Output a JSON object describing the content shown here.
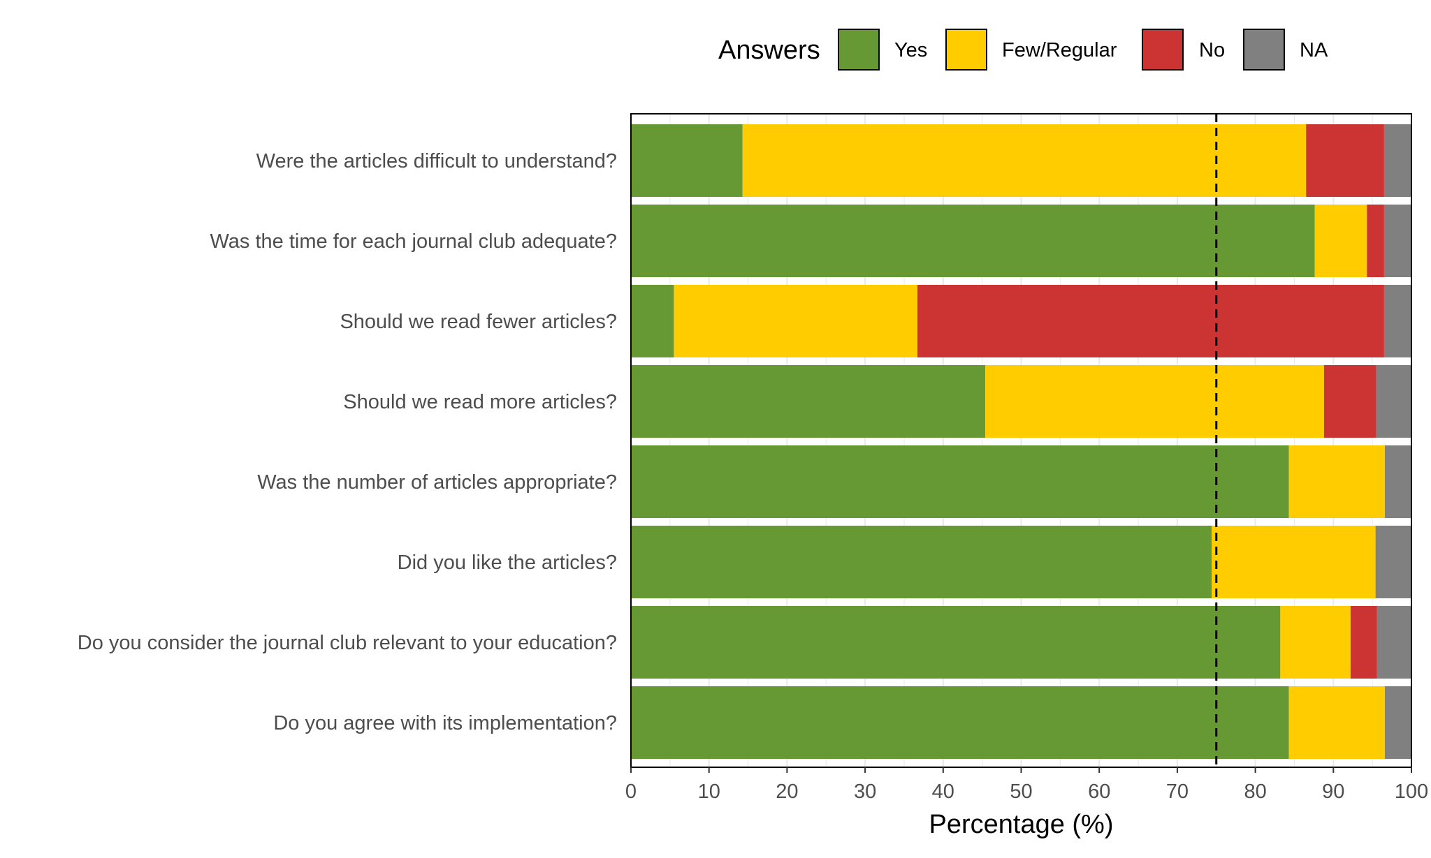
{
  "chart_data": {
    "type": "bar",
    "orientation": "horizontal",
    "stacked": true,
    "categories": [
      "Were the articles difficult to understand?",
      "Was the time for each journal club adequate?",
      "Should we read fewer articles?",
      "Should we read more articles?",
      "Was the number of articles appropriate?",
      "Did you like the articles?",
      "Do you consider the journal club relevant to your education?",
      "Do you agree with its implementation?"
    ],
    "series": [
      {
        "name": "Yes",
        "color": "#669933",
        "values": [
          14.3,
          87.6,
          5.5,
          45.4,
          84.3,
          74.4,
          83.2,
          84.3
        ]
      },
      {
        "name": "Few/Regular",
        "color": "#FFCC00",
        "values": [
          72.2,
          6.7,
          31.2,
          43.4,
          12.3,
          21.0,
          9.0,
          12.3
        ]
      },
      {
        "name": "No",
        "color": "#CC3333",
        "values": [
          10.0,
          2.2,
          59.8,
          6.7,
          0.0,
          0.0,
          3.4,
          0.0
        ]
      },
      {
        "name": "NA",
        "color": "#808080",
        "values": [
          3.5,
          3.5,
          3.5,
          4.5,
          3.4,
          4.6,
          4.4,
          3.4
        ]
      }
    ],
    "xlabel": "Percentage (%)",
    "xlim": [
      0,
      100
    ],
    "xticks": [
      "0",
      "10",
      "20",
      "30",
      "40",
      "50",
      "60",
      "70",
      "80",
      "90",
      "100"
    ],
    "reference_line": {
      "value": 75,
      "style": "dashed"
    },
    "legend": {
      "title": "Answers",
      "position": "top",
      "entries": [
        "Yes",
        "Few/Regular",
        "No",
        "NA"
      ]
    },
    "grid": true
  }
}
